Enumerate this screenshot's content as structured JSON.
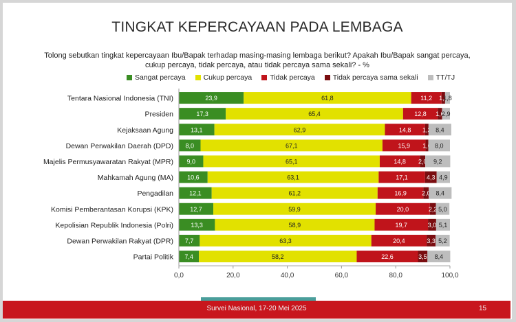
{
  "title": "TINGKAT KEPERCAYAAN PADA LEMBAGA",
  "question": "Tolong sebutkan tingkat kepercayaan Ibu/Bapak terhadap masing-masing lembaga berikut? Apakah Ibu/Bapak sangat percaya, cukup percaya, tidak percaya, atau tidak percaya sama sekali? - %",
  "footer": {
    "text": "Survei Nasional, 17-20 Mei 2025",
    "page": "15"
  },
  "colors": {
    "sangat": "#3a8d23",
    "cukup": "#e2e100",
    "tidak": "#c0141b",
    "sama_sekali": "#7a0d10",
    "ttj": "#bdbdbd",
    "footer": "#c8161d",
    "accent": "#4a9e9b"
  },
  "chart_data": {
    "type": "bar",
    "orientation": "horizontal",
    "stacked": true,
    "categories": [
      "Tentara Nasional Indonesia (TNI)",
      "Presiden",
      "Kejaksaan Agung",
      "Dewan Perwakilan Daerah (DPD)",
      "Majelis Permusyawaratan Rakyat (MPR)",
      "Mahkamah Agung (MA)",
      "Pengadilan",
      "Komisi Pemberantasan Korupsi (KPK)",
      "Kepolisian Republik Indonesia (Polri)",
      "Dewan Perwakilan Rakyat (DPR)",
      "Partai Politik"
    ],
    "series": [
      {
        "name": "Sangat percaya",
        "color": "#3a8d23",
        "values": [
          23.9,
          17.3,
          13.1,
          8.0,
          9.0,
          10.6,
          12.1,
          12.7,
          13.3,
          7.7,
          7.4
        ],
        "labels": [
          "23,9",
          "17,3",
          "13,1",
          "8,0",
          "9,0",
          "10,6",
          "12,1",
          "12,7",
          "13,3",
          "7,7",
          "7,4"
        ]
      },
      {
        "name": "Cukup percaya",
        "color": "#e2e100",
        "values": [
          61.8,
          65.4,
          62.9,
          67.1,
          65.1,
          63.1,
          61.2,
          59.9,
          58.9,
          63.3,
          58.2
        ],
        "labels": [
          "61,8",
          "65,4",
          "62,9",
          "67,1",
          "65,1",
          "63,1",
          "61,2",
          "59,9",
          "58,9",
          "63,3",
          "58,2"
        ]
      },
      {
        "name": "Tidak percaya",
        "color": "#c0141b",
        "values": [
          11.2,
          12.8,
          14.8,
          15.9,
          14.8,
          17.1,
          16.9,
          20.0,
          19.7,
          20.4,
          22.6
        ],
        "labels": [
          "11,2",
          "12,8",
          "14,8",
          "15,9",
          "14,8",
          "17,1",
          "16,9",
          "20,0",
          "19,7",
          "20,4",
          "22,6"
        ]
      },
      {
        "name": "Tidak percaya sama sekali",
        "color": "#7a0d10",
        "values": [
          1.3,
          1.6,
          1.3,
          1.0,
          2.0,
          4.3,
          2.0,
          2.2,
          3.0,
          3.3,
          3.5
        ],
        "labels": [
          "1,3",
          "1,6",
          "1,3",
          "1,0",
          "2,0",
          "4,3",
          "2,0",
          "2,2",
          "3,0",
          "3,3",
          "3,5"
        ]
      },
      {
        "name": "TT/TJ",
        "color": "#bdbdbd",
        "values": [
          1.8,
          2.9,
          8.4,
          8.0,
          9.2,
          4.9,
          8.4,
          5.0,
          5.1,
          5.2,
          8.4
        ],
        "labels": [
          "1,8",
          "2,9",
          "8,4",
          "8,0",
          "9,2",
          "4,9",
          "8,4",
          "5,0",
          "5,1",
          "5,2",
          "8,4"
        ]
      }
    ],
    "xlim": [
      0,
      100
    ],
    "xticks": [
      0,
      20,
      40,
      60,
      80,
      100
    ],
    "xtick_labels": [
      "0,0",
      "20,0",
      "40,0",
      "60,0",
      "80,0",
      "100,0"
    ],
    "grid": false,
    "legend_position": "top"
  }
}
